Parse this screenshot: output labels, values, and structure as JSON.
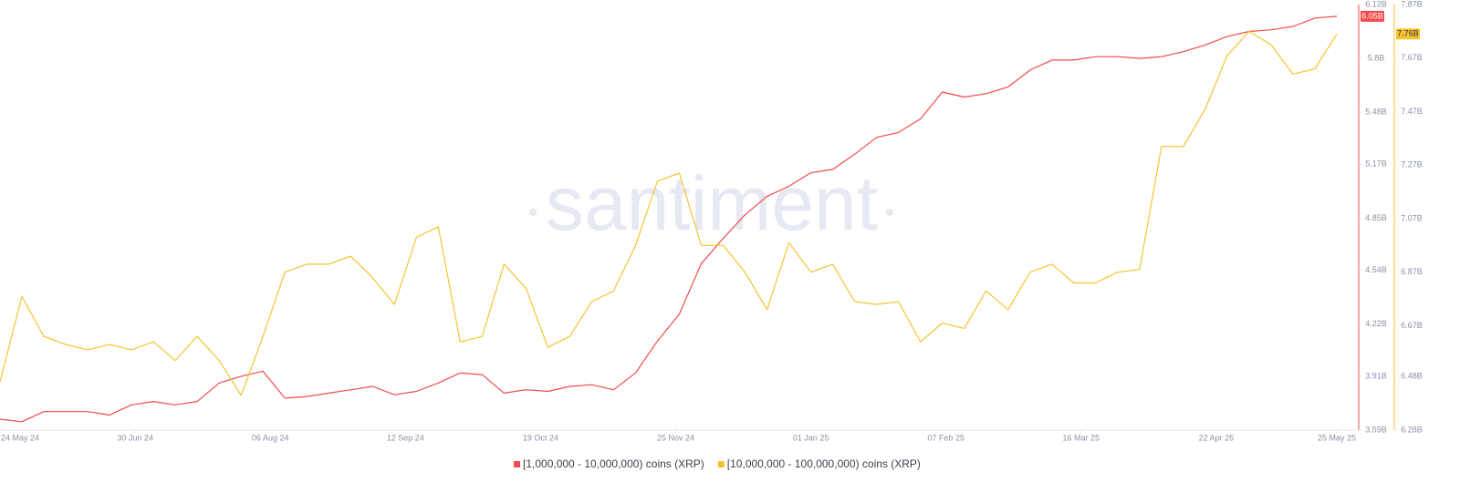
{
  "chart_data": {
    "type": "line",
    "watermark": "santiment",
    "x": [
      "2024-05-24",
      "2024-05-30",
      "2024-06-05",
      "2024-06-11",
      "2024-06-17",
      "2024-06-23",
      "2024-06-29",
      "2024-07-05",
      "2024-07-11",
      "2024-07-17",
      "2024-07-23",
      "2024-07-29",
      "2024-08-04",
      "2024-08-10",
      "2024-08-16",
      "2024-08-22",
      "2024-08-28",
      "2024-09-03",
      "2024-09-09",
      "2024-09-15",
      "2024-09-21",
      "2024-09-27",
      "2024-10-03",
      "2024-10-09",
      "2024-10-15",
      "2024-10-21",
      "2024-10-27",
      "2024-11-02",
      "2024-11-08",
      "2024-11-14",
      "2024-11-20",
      "2024-11-26",
      "2024-12-02",
      "2024-12-08",
      "2024-12-14",
      "2024-12-20",
      "2024-12-26",
      "2025-01-01",
      "2025-01-07",
      "2025-01-13",
      "2025-01-19",
      "2025-01-25",
      "2025-01-31",
      "2025-02-06",
      "2025-02-12",
      "2025-02-18",
      "2025-02-24",
      "2025-03-02",
      "2025-03-08",
      "2025-03-14",
      "2025-03-20",
      "2025-03-26",
      "2025-04-01",
      "2025-04-07",
      "2025-04-13",
      "2025-04-19",
      "2025-04-25",
      "2025-05-01",
      "2025-05-07",
      "2025-05-13",
      "2025-05-19",
      "2025-05-25"
    ],
    "xlim": [
      "2024-05-24",
      "2025-05-30"
    ],
    "xticks": [
      {
        "value": "2024-05-24",
        "label": "24 May 24"
      },
      {
        "value": "2024-06-30",
        "label": "30 Jun 24"
      },
      {
        "value": "2024-08-06",
        "label": "06 Aug 24"
      },
      {
        "value": "2024-09-12",
        "label": "12 Sep 24"
      },
      {
        "value": "2024-10-19",
        "label": "19 Oct 24"
      },
      {
        "value": "2024-11-25",
        "label": "25 Nov 24"
      },
      {
        "value": "2025-01-01",
        "label": "01 Jan 25"
      },
      {
        "value": "2025-02-07",
        "label": "07 Feb 25"
      },
      {
        "value": "2025-03-16",
        "label": "16 Mar 25"
      },
      {
        "value": "2025-04-22",
        "label": "22 Apr 25"
      },
      {
        "value": "2025-05-25",
        "label": "25 May 25"
      }
    ],
    "ylim": [
      3.59,
      6.12
    ],
    "yticks": [
      {
        "value": 3.59,
        "label": "3.59B"
      },
      {
        "value": 3.91,
        "label": "3.91B"
      },
      {
        "value": 4.22,
        "label": "4.22B"
      },
      {
        "value": 4.54,
        "label": "4.54B"
      },
      {
        "value": 4.85,
        "label": "4.85B"
      },
      {
        "value": 5.17,
        "label": "5.17B"
      },
      {
        "value": 5.48,
        "label": "5.48B"
      },
      {
        "value": 5.8,
        "label": "5.8B"
      },
      {
        "value": 6.12,
        "label": "6.12B"
      }
    ],
    "y2lim": [
      6.28,
      7.87
    ],
    "y2ticks": [
      {
        "value": 6.28,
        "label": "6.28B"
      },
      {
        "value": 6.48,
        "label": "6.48B"
      },
      {
        "value": 6.67,
        "label": "6.67B"
      },
      {
        "value": 6.87,
        "label": "6.87B"
      },
      {
        "value": 7.07,
        "label": "7.07B"
      },
      {
        "value": 7.27,
        "label": "7.27B"
      },
      {
        "value": 7.47,
        "label": "7.47B"
      },
      {
        "value": 7.67,
        "label": "7.67B"
      },
      {
        "value": 7.87,
        "label": "7.87B"
      }
    ],
    "grid": false,
    "series": [
      {
        "name": "[1,000,000 - 10,000,000) coins (XRP)",
        "color": "#f24b4b",
        "axis": "y",
        "values": [
          3.655,
          3.64,
          3.7,
          3.7,
          3.7,
          3.68,
          3.74,
          3.76,
          3.74,
          3.76,
          3.87,
          3.91,
          3.94,
          3.78,
          3.79,
          3.81,
          3.83,
          3.85,
          3.8,
          3.82,
          3.87,
          3.93,
          3.92,
          3.81,
          3.83,
          3.82,
          3.85,
          3.86,
          3.83,
          3.93,
          4.12,
          4.28,
          4.58,
          4.73,
          4.87,
          4.98,
          5.04,
          5.12,
          5.14,
          5.23,
          5.33,
          5.36,
          5.44,
          5.6,
          5.57,
          5.59,
          5.63,
          5.73,
          5.79,
          5.79,
          5.81,
          5.81,
          5.8,
          5.81,
          5.84,
          5.88,
          5.93,
          5.96,
          5.97,
          5.99,
          6.04,
          6.05
        ],
        "value_labels": [
          null,
          null,
          null,
          null,
          null,
          null,
          null,
          null,
          null,
          null,
          null,
          null,
          null,
          null,
          null,
          null,
          null,
          null,
          null,
          null,
          null,
          null,
          null,
          null,
          null,
          null,
          null,
          null,
          null,
          null,
          null,
          null,
          null,
          null,
          null,
          null,
          null,
          null,
          null,
          null,
          null,
          null,
          null,
          null,
          null,
          null,
          null,
          null,
          null,
          null,
          null,
          null,
          null,
          null,
          null,
          null,
          null,
          null,
          null,
          null,
          null,
          "6.05B"
        ]
      },
      {
        "name": "[10,000,000 - 100,000,000) coins (XRP)",
        "color": "#f5c330",
        "axis": "y2",
        "values": [
          6.46,
          6.78,
          6.63,
          6.6,
          6.58,
          6.6,
          6.58,
          6.61,
          6.54,
          6.63,
          6.54,
          6.41,
          6.63,
          6.87,
          6.9,
          6.9,
          6.93,
          6.85,
          6.75,
          7.0,
          7.04,
          6.61,
          6.63,
          6.9,
          6.81,
          6.59,
          6.63,
          6.76,
          6.8,
          6.97,
          7.21,
          7.24,
          6.97,
          6.97,
          6.87,
          6.73,
          6.98,
          6.87,
          6.9,
          6.76,
          6.75,
          6.76,
          6.61,
          6.68,
          6.66,
          6.8,
          6.73,
          6.87,
          6.9,
          6.83,
          6.83,
          6.87,
          6.88,
          7.34,
          7.34,
          7.48,
          7.68,
          7.77,
          7.72,
          7.61,
          7.63,
          7.76
        ],
        "value_labels": [
          null,
          null,
          null,
          null,
          null,
          null,
          null,
          null,
          null,
          null,
          null,
          null,
          null,
          null,
          null,
          null,
          null,
          null,
          null,
          null,
          null,
          null,
          null,
          null,
          null,
          null,
          null,
          null,
          null,
          null,
          null,
          null,
          null,
          null,
          null,
          null,
          null,
          null,
          null,
          null,
          null,
          null,
          null,
          null,
          null,
          null,
          null,
          null,
          null,
          null,
          null,
          null,
          null,
          null,
          null,
          null,
          null,
          null,
          null,
          null,
          null,
          "7.76B"
        ]
      }
    ]
  }
}
